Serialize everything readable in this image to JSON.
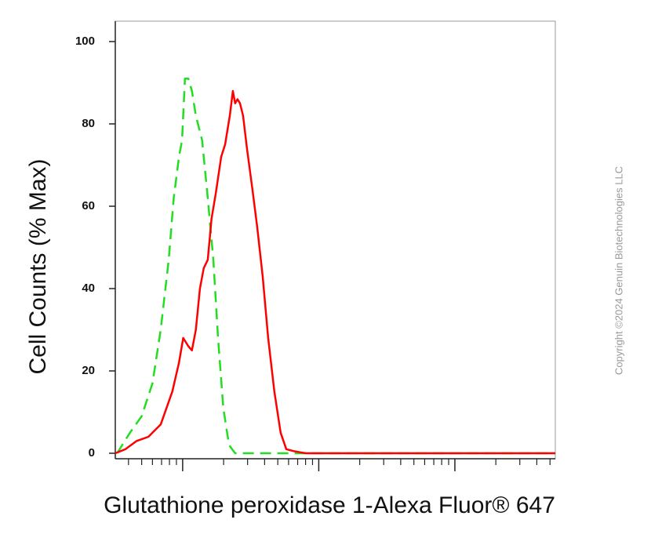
{
  "chart_data": {
    "type": "line",
    "xlabel": "Glutathione peroxidase 1-Alexa Fluor® 647",
    "ylabel": "Cell Counts (% Max)",
    "watermark": "Copyright ©2024 Genuin Biotechnologies LLC",
    "xscale": "log",
    "xlim": [
      32,
      54700
    ],
    "xticks": [
      100,
      1000,
      10000
    ],
    "xminorticks": [
      40,
      50,
      60,
      70,
      80,
      90,
      200,
      300,
      400,
      500,
      600,
      700,
      800,
      900,
      2000,
      3000,
      4000,
      5000,
      6000,
      7000,
      8000,
      9000,
      20000,
      30000,
      40000,
      50000
    ],
    "ylim": [
      0,
      100
    ],
    "yticks": [
      0,
      20,
      40,
      60,
      80,
      100
    ],
    "series": [
      {
        "color": "#ff0000",
        "dash": false,
        "x": [
          32,
          38,
          46,
          56,
          69,
          84,
          94,
          101,
          110,
          117,
          125,
          134,
          143,
          153,
          163,
          175,
          192,
          205,
          222,
          234,
          243,
          253,
          264,
          278,
          297,
          326,
          353,
          387,
          425,
          472,
          525,
          577,
          658,
          803,
          54700
        ],
        "values": [
          0,
          1,
          3,
          4,
          7,
          15,
          22,
          28,
          26,
          25,
          30,
          40,
          45,
          47,
          57,
          63,
          72,
          75,
          82,
          88,
          85,
          86,
          85,
          82,
          74,
          64,
          55,
          43,
          28,
          15,
          5,
          1,
          0.5,
          0,
          0
        ]
      },
      {
        "color": "#22dd22",
        "dash": true,
        "x": [
          33,
          41,
          50,
          60,
          69,
          79,
          86,
          94,
          99,
          104,
          110,
          117,
          125,
          139,
          153,
          168,
          182,
          199,
          219,
          243,
          297,
          54700
        ],
        "values": [
          0,
          5,
          9,
          17,
          30,
          47,
          62,
          72,
          76,
          91,
          91,
          88,
          82,
          76,
          62,
          47,
          28,
          11,
          2,
          0,
          0,
          0
        ]
      }
    ]
  }
}
